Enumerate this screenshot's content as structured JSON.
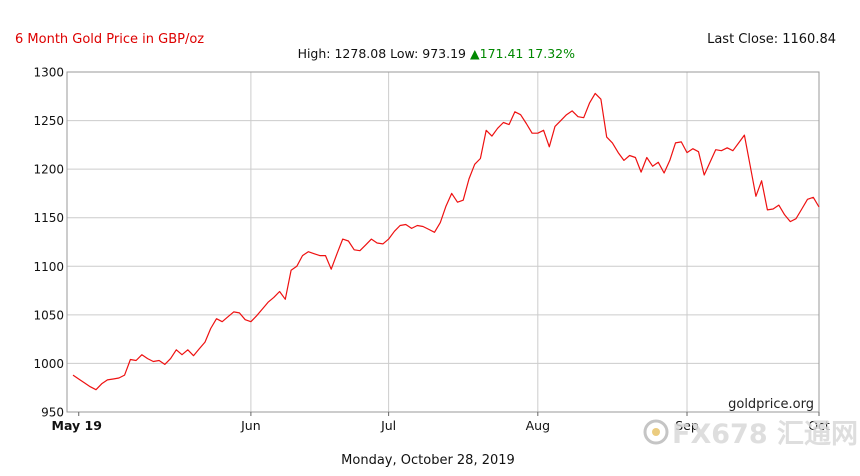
{
  "chart_data": {
    "type": "line",
    "title": "6 Month Gold Price in GBP/oz",
    "last_close": "Last Close: 1160.84",
    "stats": {
      "high_low": "High: 1278.08 Low: 973.19",
      "change": "▲171.41 17.32%"
    },
    "footer_date": "Monday, October 28, 2019",
    "source_credit": "goldprice.org",
    "watermark": "FX678 汇通网",
    "ylim": [
      950,
      1300
    ],
    "y_ticks": [
      950,
      1000,
      1050,
      1100,
      1150,
      1200,
      1250,
      1300
    ],
    "x_labels": [
      "May 19",
      "Jun",
      "Jul",
      "Aug",
      "Sep",
      "Oct"
    ],
    "grid": true,
    "colors": {
      "line": "#ee1111",
      "title": "#dd0000",
      "change": "#008800",
      "grid": "#cccccc"
    },
    "series": [
      {
        "values": [
          988,
          984,
          980,
          976,
          973,
          979,
          983,
          984,
          985,
          988,
          1004,
          1003,
          1009,
          1005,
          1002,
          1003,
          999,
          1005,
          1014,
          1009,
          1014,
          1008,
          1015,
          1022,
          1036,
          1046,
          1043,
          1048,
          1053,
          1052,
          1045,
          1043,
          1049,
          1056,
          1063,
          1068,
          1074,
          1066,
          1096,
          1100,
          1111,
          1115,
          1113,
          1111,
          1111,
          1097,
          1113,
          1128,
          1126,
          1117,
          1116,
          1122,
          1128,
          1124,
          1123,
          1128,
          1136,
          1142,
          1143,
          1139,
          1142,
          1141,
          1138,
          1135,
          1145,
          1162,
          1175,
          1166,
          1168,
          1190,
          1205,
          1211,
          1240,
          1234,
          1242,
          1248,
          1246,
          1259,
          1256,
          1247,
          1237,
          1237,
          1240,
          1223,
          1244,
          1250,
          1256,
          1260,
          1254,
          1253,
          1268,
          1278,
          1272,
          1233,
          1227,
          1217,
          1209,
          1214,
          1212,
          1197,
          1212,
          1203,
          1207,
          1196,
          1209,
          1227,
          1228,
          1217,
          1221,
          1218,
          1194,
          1207,
          1220,
          1219,
          1222,
          1219,
          1227,
          1235,
          1204,
          1172,
          1188,
          1158,
          1159,
          1163,
          1153,
          1146,
          1149,
          1159,
          1169,
          1171,
          1161
        ]
      }
    ]
  }
}
